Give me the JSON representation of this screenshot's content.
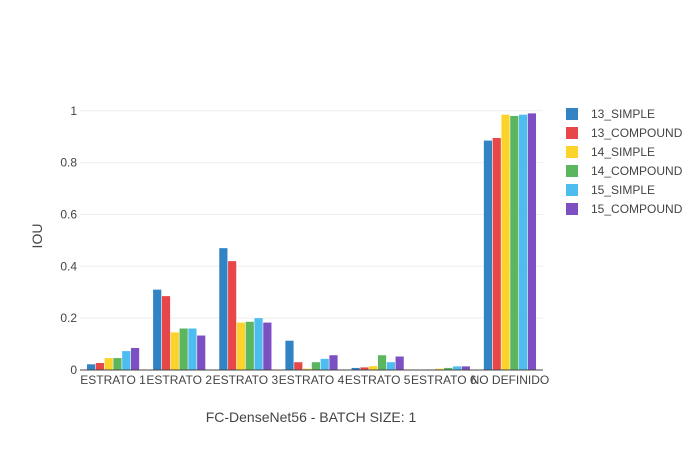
{
  "chart_data": {
    "type": "bar",
    "title": "",
    "xlabel": "FC-DenseNet56 - BATCH SIZE: 1",
    "ylabel": "IOU",
    "ylim": [
      0,
      1.03
    ],
    "yticks": [
      0,
      0.2,
      0.4,
      0.6,
      0.8,
      1
    ],
    "grid": true,
    "legend_position": "right",
    "categories": [
      "ESTRATO 1",
      "ESTRATO 2",
      "ESTRATO 3",
      "ESTRATO 4",
      "ESTRATO 5",
      "ESTRATO 6",
      "NO DEFINIDO"
    ],
    "series": [
      {
        "name": "13_SIMPLE",
        "color": "#3283c3",
        "values": [
          0.022,
          0.31,
          0.47,
          0.113,
          0.008,
          0.001,
          0.885
        ]
      },
      {
        "name": "13_COMPOUND",
        "color": "#e8474a",
        "values": [
          0.027,
          0.285,
          0.42,
          0.03,
          0.01,
          0.002,
          0.895
        ]
      },
      {
        "name": "14_SIMPLE",
        "color": "#fcd32a",
        "values": [
          0.046,
          0.145,
          0.183,
          0.005,
          0.015,
          0.005,
          0.985
        ]
      },
      {
        "name": "14_COMPOUND",
        "color": "#5cb660",
        "values": [
          0.046,
          0.16,
          0.186,
          0.03,
          0.057,
          0.008,
          0.98
        ]
      },
      {
        "name": "15_SIMPLE",
        "color": "#4dbdf0",
        "values": [
          0.073,
          0.16,
          0.2,
          0.043,
          0.03,
          0.014,
          0.985
        ]
      },
      {
        "name": "15_COMPOUND",
        "color": "#7c4fc3",
        "values": [
          0.085,
          0.133,
          0.183,
          0.057,
          0.052,
          0.014,
          0.99
        ]
      }
    ]
  }
}
